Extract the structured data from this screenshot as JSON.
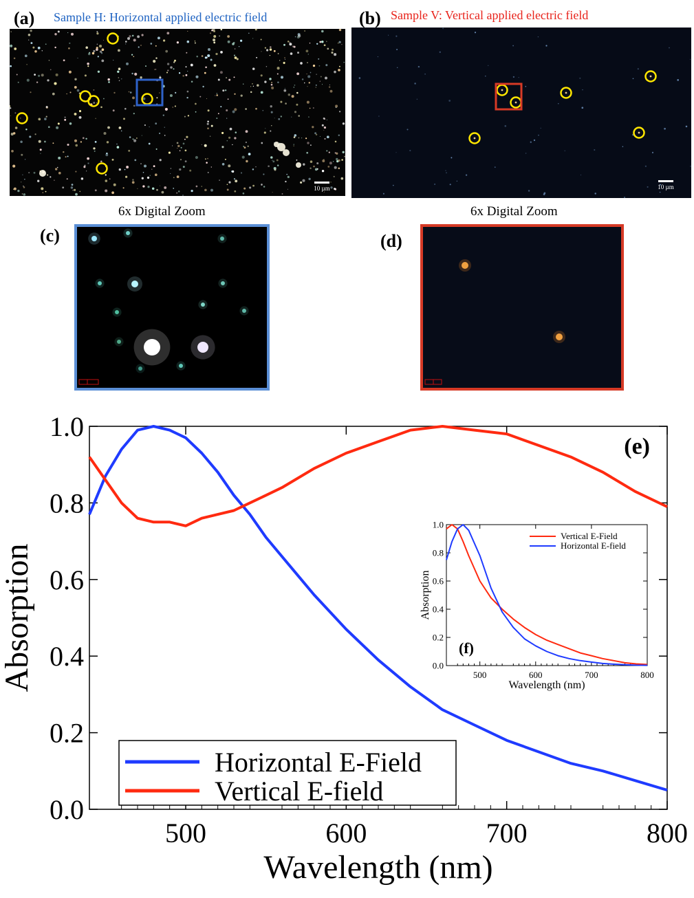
{
  "panels": {
    "a": {
      "letter": "(a)",
      "caption": "Sample H: Horizontal applied electric field",
      "scalebar": "10 µm"
    },
    "b": {
      "letter": "(b)",
      "caption": "Sample V: Vertical applied electric field",
      "scalebar": "10 µm"
    },
    "c": {
      "letter": "(c)",
      "zoom_label": "6x Digital Zoom"
    },
    "d": {
      "letter": "(d)",
      "zoom_label": "6x Digital Zoom"
    }
  },
  "colors": {
    "horizontal": "#1f3bff",
    "vertical": "#ff2a10",
    "frame_c": "#5b8fd6",
    "frame_d": "#d63a26",
    "marker": "#ffe600"
  },
  "chart_data": [
    {
      "id": "e",
      "type": "line",
      "panel_label": "(e)",
      "xlabel": "Wavelength (nm)",
      "ylabel": "Absorption",
      "xlim": [
        440,
        800
      ],
      "ylim": [
        0.0,
        1.0
      ],
      "xticks": [
        500,
        600,
        700,
        800
      ],
      "yticks": [
        0.0,
        0.2,
        0.4,
        0.6,
        0.8,
        1.0
      ],
      "ytick_labels": [
        "0.0",
        "0.2",
        "0.4",
        "0.6",
        "0.8",
        "1.0"
      ],
      "legend": {
        "position": "bottom-left",
        "entries": [
          "Horizontal E-Field",
          "Vertical E-field"
        ]
      },
      "series": [
        {
          "name": "Horizontal E-Field",
          "color": "#1f3bff",
          "x": [
            440,
            450,
            460,
            470,
            480,
            490,
            500,
            510,
            520,
            530,
            540,
            550,
            560,
            570,
            580,
            600,
            620,
            640,
            660,
            680,
            700,
            720,
            740,
            760,
            780,
            800
          ],
          "y": [
            0.77,
            0.87,
            0.94,
            0.99,
            1.0,
            0.99,
            0.97,
            0.93,
            0.88,
            0.82,
            0.77,
            0.71,
            0.66,
            0.61,
            0.56,
            0.47,
            0.39,
            0.32,
            0.26,
            0.22,
            0.18,
            0.15,
            0.12,
            0.1,
            0.075,
            0.05
          ]
        },
        {
          "name": "Vertical E-field",
          "color": "#ff2a10",
          "x": [
            440,
            450,
            460,
            470,
            480,
            490,
            500,
            510,
            520,
            530,
            540,
            550,
            560,
            580,
            600,
            620,
            640,
            660,
            680,
            700,
            720,
            740,
            760,
            780,
            800
          ],
          "y": [
            0.92,
            0.86,
            0.8,
            0.76,
            0.75,
            0.75,
            0.74,
            0.76,
            0.77,
            0.78,
            0.8,
            0.82,
            0.84,
            0.89,
            0.93,
            0.96,
            0.99,
            1.0,
            0.99,
            0.98,
            0.95,
            0.92,
            0.88,
            0.83,
            0.79
          ]
        }
      ]
    },
    {
      "id": "f",
      "type": "line",
      "panel_label": "(f)",
      "xlabel": "Wavelength (nm)",
      "ylabel": "Absorption",
      "xlim": [
        440,
        800
      ],
      "ylim": [
        0.0,
        1.0
      ],
      "xticks": [
        500,
        600,
        700,
        800
      ],
      "yticks": [
        0.0,
        0.2,
        0.4,
        0.6,
        0.8,
        1.0
      ],
      "ytick_labels": [
        "0.0",
        "0.2",
        "0.4",
        "0.6",
        "0.8",
        "1.0"
      ],
      "legend": {
        "position": "top-right",
        "entries": [
          "Vertical E-Field",
          "Horizontal E-field"
        ]
      },
      "series": [
        {
          "name": "Vertical E-Field",
          "color": "#ff2a10",
          "x": [
            440,
            450,
            460,
            470,
            480,
            500,
            520,
            540,
            560,
            580,
            600,
            620,
            640,
            660,
            680,
            700,
            720,
            740,
            760,
            780,
            800
          ],
          "y": [
            0.97,
            1.0,
            0.97,
            0.88,
            0.78,
            0.6,
            0.48,
            0.4,
            0.33,
            0.27,
            0.22,
            0.18,
            0.15,
            0.12,
            0.09,
            0.07,
            0.05,
            0.035,
            0.02,
            0.012,
            0.008
          ]
        },
        {
          "name": "Horizontal E-field",
          "color": "#1f3bff",
          "x": [
            440,
            450,
            460,
            470,
            480,
            500,
            520,
            540,
            560,
            580,
            600,
            620,
            640,
            660,
            680,
            700,
            720,
            740,
            760,
            780,
            800
          ],
          "y": [
            0.75,
            0.88,
            0.97,
            1.0,
            0.96,
            0.78,
            0.55,
            0.38,
            0.27,
            0.19,
            0.14,
            0.1,
            0.07,
            0.05,
            0.035,
            0.025,
            0.015,
            0.01,
            0.006,
            0.003,
            0.002
          ]
        }
      ]
    }
  ]
}
